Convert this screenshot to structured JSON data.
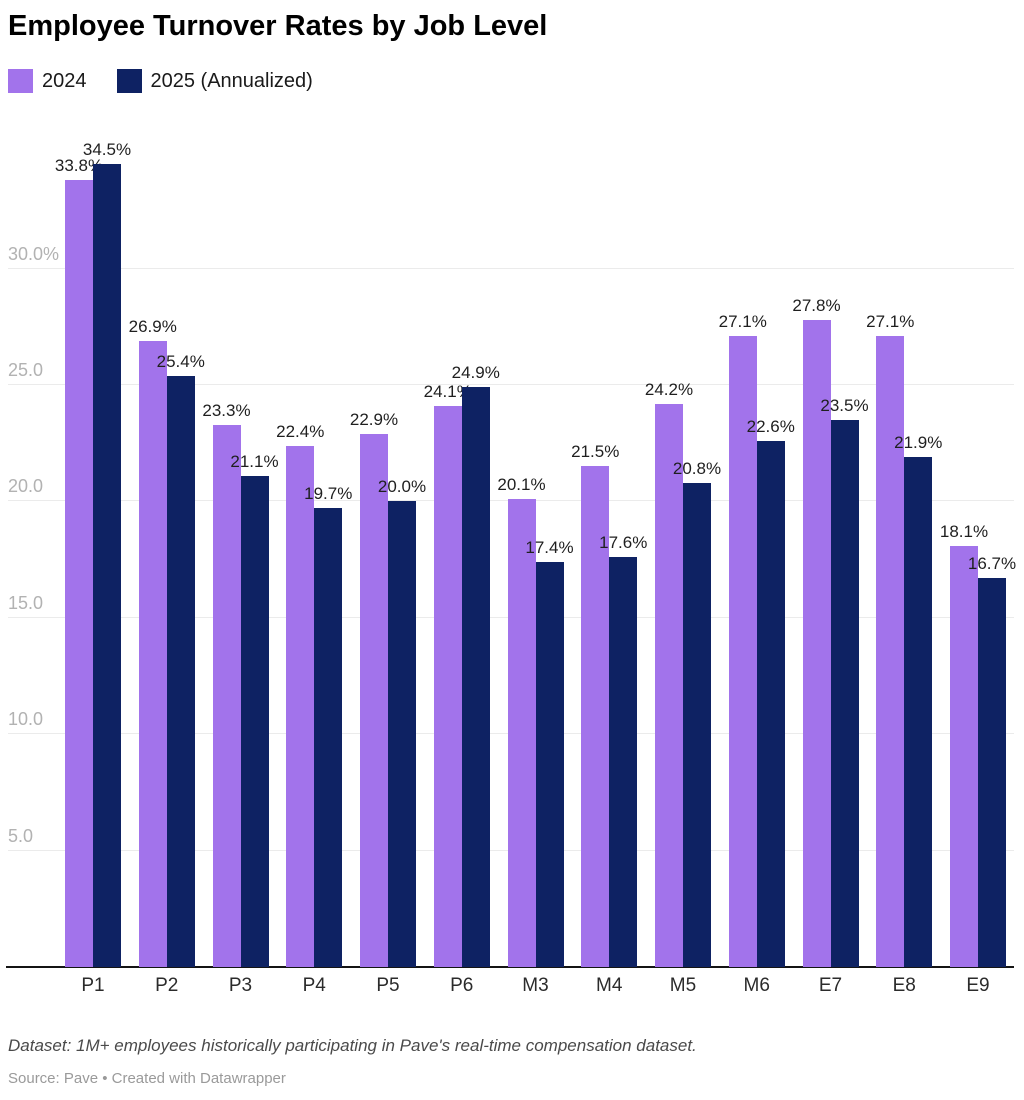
{
  "header": {
    "title": "Employee Turnover Rates by Job Level"
  },
  "legend": {
    "items": [
      {
        "label": "2024",
        "color": "#a273eb"
      },
      {
        "label": "2025 (Annualized)",
        "color": "#0e2263"
      }
    ]
  },
  "chart_data": {
    "type": "bar",
    "title": "Employee Turnover Rates by Job Level",
    "categories": [
      "P1",
      "P2",
      "P3",
      "P4",
      "P5",
      "P6",
      "M3",
      "M4",
      "M5",
      "M6",
      "E7",
      "E8",
      "E9"
    ],
    "series": [
      {
        "name": "2024",
        "color": "#a273eb",
        "values": [
          33.8,
          26.9,
          23.3,
          22.4,
          22.9,
          24.1,
          20.1,
          21.5,
          24.2,
          27.1,
          27.8,
          27.1,
          18.1
        ]
      },
      {
        "name": "2025 (Annualized)",
        "color": "#0e2263",
        "values": [
          34.5,
          25.4,
          21.1,
          19.7,
          20.0,
          24.9,
          17.4,
          17.6,
          20.8,
          22.6,
          23.5,
          21.9,
          16.7
        ]
      }
    ],
    "xlabel": "",
    "ylabel": "",
    "ylim": [
      0,
      35.9
    ],
    "yticks": [
      5,
      10,
      15,
      20,
      25,
      30
    ],
    "ytick_labels": [
      "5.0",
      "10.0",
      "15.0",
      "20.0",
      "25.0",
      "30.0%"
    ],
    "value_label_suffix": "%",
    "grid": "horizontal",
    "legend_position": "top-left",
    "gridline_color": "#ebebeb",
    "axis_line_color": "#141414",
    "value_label_color": "#1f1f1f",
    "tick_label_color": "#b2b2b2"
  },
  "footer": {
    "note": "Dataset: 1M+ employees historically participating in Pave's real-time compensation dataset.",
    "source": "Source: Pave • Created with Datawrapper"
  }
}
